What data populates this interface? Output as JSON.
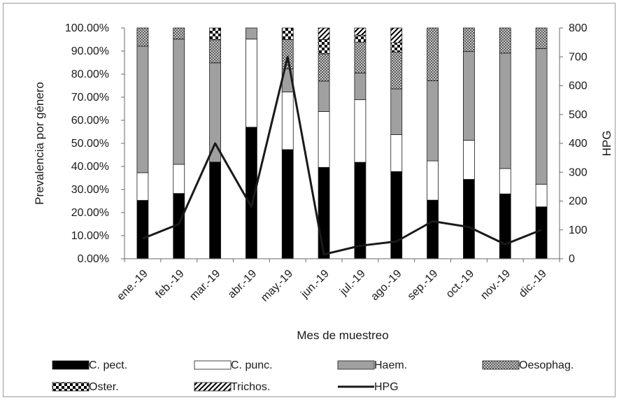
{
  "chart_data": {
    "type": "bar",
    "stacked": true,
    "combo_line_series": "HPG",
    "categories": [
      "ene.-19",
      "feb.-19",
      "mar.-19",
      "abr.-19",
      "may.-19",
      "jun.-19",
      "jul.-19",
      "ago.-19",
      "sep.-19",
      "oct.-19",
      "nov.-19",
      "dic.-19"
    ],
    "series": [
      {
        "name": "C. pect.",
        "key": "cpect",
        "values": [
          25.3,
          28.3,
          41.9,
          57.0,
          47.3,
          39.6,
          41.8,
          37.8,
          25.4,
          34.4,
          28.1,
          22.5
        ]
      },
      {
        "name": "C. punc.",
        "key": "cpunc",
        "values": [
          12.0,
          12.6,
          0.0,
          38.2,
          25.0,
          24.2,
          27.1,
          16.0,
          17.0,
          16.9,
          11.0,
          9.8
        ]
      },
      {
        "name": "Haem.",
        "key": "haem",
        "values": [
          54.8,
          54.3,
          43.0,
          4.8,
          10.0,
          13.2,
          11.6,
          19.8,
          34.7,
          38.5,
          50.0,
          58.8
        ]
      },
      {
        "name": "Oesophag.",
        "key": "oeso",
        "values": [
          7.9,
          4.8,
          10.0,
          0.0,
          12.7,
          11.8,
          13.4,
          16.0,
          22.9,
          10.2,
          10.9,
          8.9
        ]
      },
      {
        "name": "Oster.",
        "key": "oster",
        "values": [
          0.0,
          0.0,
          5.1,
          0.0,
          5.0,
          6.2,
          3.0,
          4.0,
          0.0,
          0.0,
          0.0,
          0.0
        ]
      },
      {
        "name": "Trichos.",
        "key": "trichos",
        "values": [
          0.0,
          0.0,
          0.0,
          0.0,
          0.0,
          5.0,
          3.1,
          6.4,
          0.0,
          0.0,
          0.0,
          0.0
        ]
      },
      {
        "name": "HPG",
        "key": "hpg",
        "type": "line",
        "axis": "right",
        "values": [
          70,
          120,
          400,
          180,
          700,
          15,
          45,
          60,
          130,
          110,
          50,
          100
        ]
      }
    ],
    "xlabel": "Mes de muestreo",
    "ylabel": "Prevalencia por género",
    "y2label": "HPG",
    "ylim": [
      0,
      100
    ],
    "y2lim": [
      0,
      800
    ],
    "yticks": [
      "0.00%",
      "10.00%",
      "20.00%",
      "30.00%",
      "40.00%",
      "50.00%",
      "60.00%",
      "70.00%",
      "80.00%",
      "90.00%",
      "100.00%"
    ],
    "y2ticks": [
      "0",
      "100",
      "200",
      "300",
      "400",
      "500",
      "600",
      "700",
      "800"
    ],
    "legend_position": "bottom",
    "grid": false,
    "colors": {
      "cpect": "#000000",
      "cpunc": "#ffffff",
      "haem": "#a0a0a0",
      "line": "#1a1a1a",
      "stroke": "#1a1a1a"
    }
  }
}
